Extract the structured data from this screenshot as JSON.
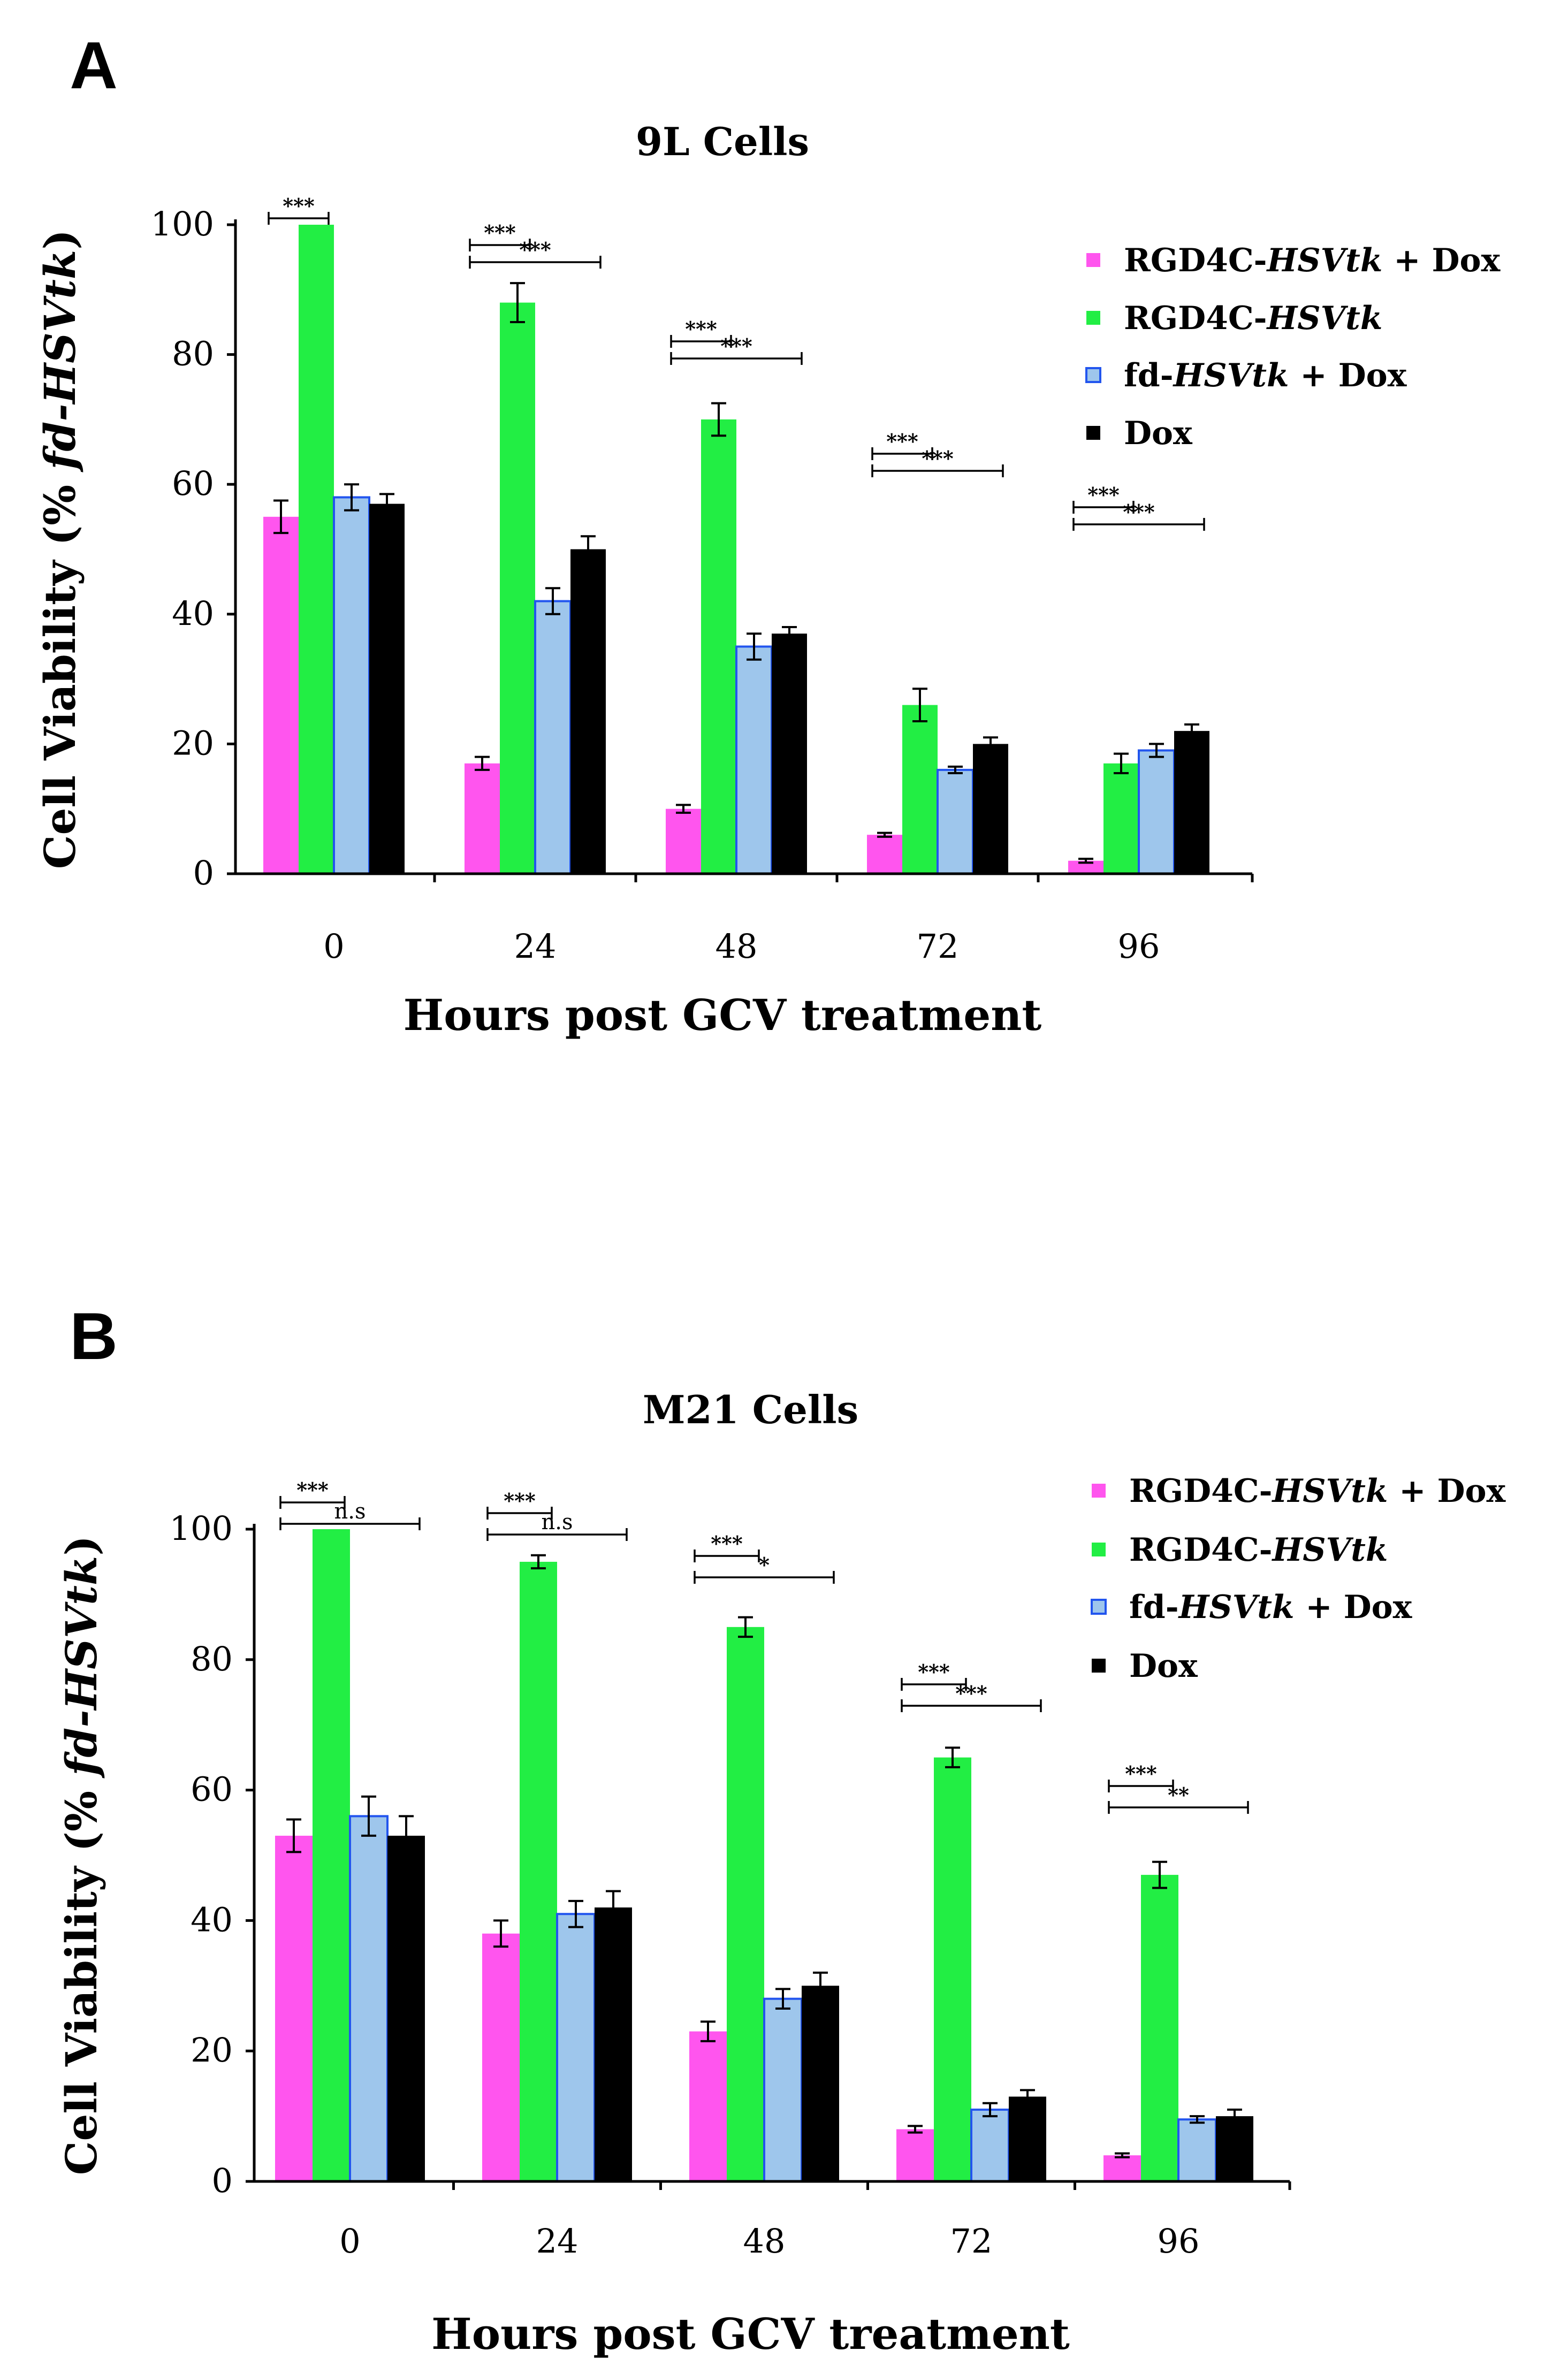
{
  "chart_data": [
    {
      "type": "bar",
      "panel": "A",
      "title": "9L Cells",
      "xlabel": "Hours post GCV treatment",
      "ylabel_prefix": "Cell Viability (% ",
      "ylabel_italic": "fd-HSVtk",
      "ylabel_suffix": ")",
      "ylim": [
        0,
        100
      ],
      "yticks": [
        "0",
        "20",
        "40",
        "60",
        "80",
        "100"
      ],
      "categories": [
        "0",
        "24",
        "48",
        "72",
        "96"
      ],
      "legend_position": "top-right",
      "series": [
        {
          "name": "RGD4C-HSVtk + Dox",
          "legend_plain": "RGD4C-",
          "legend_italic": "HSVtk",
          "legend_suffix": " + Dox",
          "color": "#ff55ee",
          "edge": "#ff55ee",
          "values": [
            55,
            17,
            10,
            6,
            2
          ],
          "errors": [
            2.5,
            1,
            0.6,
            0.3,
            0.3
          ]
        },
        {
          "name": "RGD4C-HSVtk",
          "legend_plain": "RGD4C-",
          "legend_italic": "HSVtk",
          "legend_suffix": "",
          "color": "#22ee44",
          "edge": "#22ee44",
          "values": [
            100,
            88,
            70,
            26,
            17
          ],
          "errors": [
            0,
            3,
            2.5,
            2.5,
            1.5
          ]
        },
        {
          "name": "fd-HSVtk + Dox",
          "legend_plain": "fd-",
          "legend_italic": "HSVtk",
          "legend_suffix": " + Dox",
          "color": "#9ec6ec",
          "edge": "#2255ee",
          "values": [
            58,
            42,
            35,
            16,
            19
          ],
          "errors": [
            2,
            2,
            2,
            0.5,
            1
          ]
        },
        {
          "name": "Dox",
          "legend_plain": "Dox",
          "legend_italic": "",
          "legend_suffix": "",
          "color": "#000000",
          "edge": "#000000",
          "values": [
            57,
            50,
            37,
            20,
            22
          ],
          "errors": [
            1.5,
            2,
            1,
            1,
            1
          ]
        }
      ],
      "significance": [
        {
          "category": 0,
          "from": 0,
          "to": 1,
          "label": "***",
          "level": 0
        },
        {
          "category": 1,
          "from": 0,
          "to": 1,
          "label": "***",
          "level": 0
        },
        {
          "category": 1,
          "from": 0,
          "to": 3,
          "label": "***",
          "level": 1
        },
        {
          "category": 2,
          "from": 0,
          "to": 1,
          "label": "***",
          "level": 0
        },
        {
          "category": 2,
          "from": 0,
          "to": 3,
          "label": "***",
          "level": 1
        },
        {
          "category": 3,
          "from": 0,
          "to": 1,
          "label": "***",
          "level": 0
        },
        {
          "category": 3,
          "from": 0,
          "to": 3,
          "label": "***",
          "level": 1
        },
        {
          "category": 4,
          "from": 0,
          "to": 1,
          "label": "***",
          "level": 0
        },
        {
          "category": 4,
          "from": 0,
          "to": 3,
          "label": "***",
          "level": 1
        }
      ]
    },
    {
      "type": "bar",
      "panel": "B",
      "title": "M21 Cells",
      "xlabel": "Hours post GCV treatment",
      "ylabel_prefix": "Cell Viability (% ",
      "ylabel_italic": "fd-HSVtk",
      "ylabel_suffix": ")",
      "ylim": [
        0,
        100
      ],
      "yticks": [
        "0",
        "20",
        "40",
        "60",
        "80",
        "100"
      ],
      "categories": [
        "0",
        "24",
        "48",
        "72",
        "96"
      ],
      "legend_position": "top-right",
      "series": [
        {
          "name": "RGD4C-HSVtk + Dox",
          "legend_plain": "RGD4C-",
          "legend_italic": "HSVtk",
          "legend_suffix": " + Dox",
          "color": "#ff55ee",
          "edge": "#ff55ee",
          "values": [
            53,
            38,
            23,
            8,
            4
          ],
          "errors": [
            2.5,
            2,
            1.5,
            0.5,
            0.3
          ]
        },
        {
          "name": "RGD4C-HSVtk",
          "legend_plain": "RGD4C-",
          "legend_italic": "HSVtk",
          "legend_suffix": "",
          "color": "#22ee44",
          "edge": "#22ee44",
          "values": [
            100,
            95,
            85,
            65,
            47
          ],
          "errors": [
            0,
            1,
            1.5,
            1.5,
            2
          ]
        },
        {
          "name": "fd-HSVtk + Dox",
          "legend_plain": "fd-",
          "legend_italic": "HSVtk",
          "legend_suffix": " + Dox",
          "color": "#9ec6ec",
          "edge": "#2255ee",
          "values": [
            56,
            41,
            28,
            11,
            9.5
          ],
          "errors": [
            3,
            2,
            1.5,
            1,
            0.5
          ]
        },
        {
          "name": "Dox",
          "legend_plain": "Dox",
          "legend_italic": "",
          "legend_suffix": "",
          "color": "#000000",
          "edge": "#000000",
          "values": [
            53,
            42,
            30,
            13,
            10
          ],
          "errors": [
            3,
            2.5,
            2,
            1,
            1
          ]
        }
      ],
      "significance": [
        {
          "category": 0,
          "from": 0,
          "to": 1,
          "label": "***",
          "level": 0
        },
        {
          "category": 0,
          "from": 0,
          "to": 3,
          "label": "n.s",
          "level": 1
        },
        {
          "category": 1,
          "from": 0,
          "to": 1,
          "label": "***",
          "level": 0
        },
        {
          "category": 1,
          "from": 0,
          "to": 3,
          "label": "n.s",
          "level": 1
        },
        {
          "category": 2,
          "from": 0,
          "to": 1,
          "label": "***",
          "level": 0
        },
        {
          "category": 2,
          "from": 0,
          "to": 3,
          "label": "*",
          "level": 1
        },
        {
          "category": 3,
          "from": 0,
          "to": 1,
          "label": "***",
          "level": 0
        },
        {
          "category": 3,
          "from": 0,
          "to": 3,
          "label": "***",
          "level": 1
        },
        {
          "category": 4,
          "from": 0,
          "to": 1,
          "label": "***",
          "level": 0
        },
        {
          "category": 4,
          "from": 0,
          "to": 3,
          "label": "**",
          "level": 1
        }
      ]
    }
  ]
}
